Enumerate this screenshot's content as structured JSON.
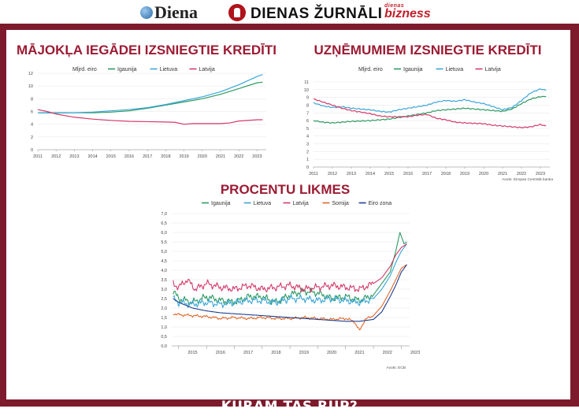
{
  "header": {
    "logos": [
      {
        "text": "Diena",
        "icon": "globe-icon"
      },
      {
        "text": "DIENAS ŽURNĀLI",
        "icon": "zurnali-icon"
      },
      {
        "text_small": "dienas",
        "text_big": "bizness"
      }
    ]
  },
  "footer_title": "KURAM TAS RŪP?",
  "colors": {
    "frame": "#7d1b2d",
    "title": "#9c1b33",
    "igaunija": "#2e9a63",
    "lietuva": "#3aa6d8",
    "latvija": "#d43a6a",
    "somija": "#e0682a",
    "eiro_zona": "#1f3f8f"
  },
  "chart_data": [
    {
      "type": "line",
      "title": "MĀJOKĻA IEGĀDEI IZSNIEGTIE KREDĪTI",
      "unit_label": "Mljrd. eiro",
      "x": [
        2011,
        2012,
        2013,
        2014,
        2015,
        2016,
        2017,
        2018,
        2019,
        2020,
        2021,
        2022,
        2023
      ],
      "x_ticks": [
        "2011",
        "2012",
        "2013",
        "2014",
        "2015",
        "2016",
        "2017",
        "2018",
        "2019",
        "2020",
        "2021",
        "2022",
        "2023"
      ],
      "y_ticks": [
        "0",
        "2",
        "4",
        "6",
        "8",
        "10",
        "12"
      ],
      "ylim": [
        0,
        12
      ],
      "xlim": [
        2011,
        2023.5
      ],
      "series": [
        {
          "name": "Igaunija",
          "color": "#2e9a63",
          "points": [
            [
              2011,
              5.8
            ],
            [
              2012,
              5.8
            ],
            [
              2013,
              5.8
            ],
            [
              2014,
              5.8
            ],
            [
              2015,
              5.9
            ],
            [
              2016,
              6.1
            ],
            [
              2017,
              6.5
            ],
            [
              2018,
              7.0
            ],
            [
              2019,
              7.5
            ],
            [
              2020,
              8.0
            ],
            [
              2021,
              8.7
            ],
            [
              2022,
              9.6
            ],
            [
              2023,
              10.5
            ],
            [
              2023.3,
              10.6
            ]
          ]
        },
        {
          "name": "Lietuva",
          "color": "#3aa6d8",
          "points": [
            [
              2011,
              5.8
            ],
            [
              2012,
              5.75
            ],
            [
              2013,
              5.8
            ],
            [
              2014,
              5.9
            ],
            [
              2015,
              6.1
            ],
            [
              2016,
              6.3
            ],
            [
              2017,
              6.6
            ],
            [
              2018,
              7.1
            ],
            [
              2019,
              7.7
            ],
            [
              2020,
              8.3
            ],
            [
              2021,
              9.1
            ],
            [
              2022,
              10.2
            ],
            [
              2023,
              11.5
            ],
            [
              2023.3,
              11.8
            ]
          ]
        },
        {
          "name": "Latvija",
          "color": "#d43a6a",
          "points": [
            [
              2011,
              6.3
            ],
            [
              2011.5,
              6.0
            ],
            [
              2012,
              5.6
            ],
            [
              2013,
              5.1
            ],
            [
              2014,
              4.8
            ],
            [
              2015,
              4.6
            ],
            [
              2016,
              4.45
            ],
            [
              2017,
              4.4
            ],
            [
              2018,
              4.35
            ],
            [
              2018.5,
              4.3
            ],
            [
              2019,
              4.0
            ],
            [
              2019.5,
              4.1
            ],
            [
              2020,
              4.1
            ],
            [
              2021,
              4.1
            ],
            [
              2021.5,
              4.2
            ],
            [
              2022,
              4.5
            ],
            [
              2023,
              4.7
            ],
            [
              2023.3,
              4.7
            ]
          ]
        }
      ]
    },
    {
      "type": "line",
      "title": "UZŅĒMUMIEM IZSNIEGTIE KREDĪTI",
      "unit_label": "Mljrd. eiro",
      "source": "Avots: Eiropas Centrālā banka",
      "x": [
        2011,
        2012,
        2013,
        2014,
        2015,
        2016,
        2017,
        2018,
        2019,
        2020,
        2021,
        2022,
        2023
      ],
      "x_ticks": [
        "2011",
        "2012",
        "2013",
        "2014",
        "2015",
        "2016",
        "2017",
        "2018",
        "2019",
        "2020",
        "2021",
        "2022",
        "2023"
      ],
      "y_ticks": [
        "0",
        "1",
        "2",
        "3",
        "4",
        "5",
        "6",
        "7",
        "8",
        "9",
        "10",
        "11"
      ],
      "ylim": [
        0,
        11
      ],
      "xlim": [
        2011,
        2023.5
      ],
      "series": [
        {
          "name": "Igaunija",
          "color": "#2e9a63",
          "points": [
            [
              2011,
              6.0
            ],
            [
              2011.5,
              5.8
            ],
            [
              2012,
              5.7
            ],
            [
              2013,
              5.9
            ],
            [
              2014,
              6.0
            ],
            [
              2015,
              6.2
            ],
            [
              2016,
              6.6
            ],
            [
              2017,
              7.0
            ],
            [
              2017.5,
              7.3
            ],
            [
              2018,
              7.4
            ],
            [
              2019,
              7.6
            ],
            [
              2020,
              7.4
            ],
            [
              2020.5,
              7.3
            ],
            [
              2021,
              7.2
            ],
            [
              2021.5,
              7.5
            ],
            [
              2022,
              8.2
            ],
            [
              2022.5,
              8.8
            ],
            [
              2023,
              9.1
            ],
            [
              2023.3,
              9.1
            ]
          ]
        },
        {
          "name": "Lietuva",
          "color": "#3aa6d8",
          "points": [
            [
              2011,
              8.3
            ],
            [
              2011.5,
              7.9
            ],
            [
              2012,
              7.7
            ],
            [
              2012.5,
              7.8
            ],
            [
              2013,
              7.6
            ],
            [
              2014,
              7.4
            ],
            [
              2014.5,
              7.2
            ],
            [
              2015,
              7.1
            ],
            [
              2015.5,
              7.4
            ],
            [
              2016,
              7.6
            ],
            [
              2017,
              8.0
            ],
            [
              2017.5,
              8.4
            ],
            [
              2018,
              8.6
            ],
            [
              2018.5,
              8.5
            ],
            [
              2019,
              8.7
            ],
            [
              2019.5,
              8.4
            ],
            [
              2020,
              8.2
            ],
            [
              2020.5,
              7.8
            ],
            [
              2021,
              7.4
            ],
            [
              2021.5,
              7.7
            ],
            [
              2022,
              8.6
            ],
            [
              2022.5,
              9.6
            ],
            [
              2023,
              10.1
            ],
            [
              2023.3,
              9.9
            ]
          ]
        },
        {
          "name": "Latvija",
          "color": "#d43a6a",
          "points": [
            [
              2011,
              8.8
            ],
            [
              2011.5,
              8.4
            ],
            [
              2012,
              8.0
            ],
            [
              2012.5,
              7.6
            ],
            [
              2013,
              7.3
            ],
            [
              2014,
              6.9
            ],
            [
              2014.5,
              6.6
            ],
            [
              2015,
              6.5
            ],
            [
              2016,
              6.5
            ],
            [
              2016.5,
              6.7
            ],
            [
              2017,
              6.8
            ],
            [
              2017.5,
              6.3
            ],
            [
              2018,
              6.1
            ],
            [
              2018.5,
              5.8
            ],
            [
              2019,
              5.7
            ],
            [
              2020,
              5.6
            ],
            [
              2020.5,
              5.4
            ],
            [
              2021,
              5.3
            ],
            [
              2021.5,
              5.2
            ],
            [
              2022,
              5.1
            ],
            [
              2022.5,
              5.2
            ],
            [
              2023,
              5.5
            ],
            [
              2023.3,
              5.3
            ]
          ]
        }
      ]
    },
    {
      "type": "line",
      "title": "PROCENTU LIKMES",
      "source": "Avots: ECB",
      "x_ticks": [
        "2015",
        "2016",
        "2017",
        "2018",
        "2019",
        "2020",
        "2021",
        "2022",
        "2023"
      ],
      "y_ticks": [
        "0,0",
        "0,5",
        "1,0",
        "1,5",
        "2,0",
        "2,5",
        "3,0",
        "3,5",
        "4,0",
        "4,5",
        "5,0",
        "5,5",
        "6,0",
        "6,5",
        "7,0"
      ],
      "ylim": [
        0,
        7
      ],
      "xlim": [
        2014.75,
        2023.3
      ],
      "series": [
        {
          "name": "Igaunija",
          "color": "#2e9a63",
          "points": [
            [
              2014.8,
              2.9
            ],
            [
              2015,
              2.5
            ],
            [
              2015.5,
              2.3
            ],
            [
              2016,
              2.6
            ],
            [
              2016.5,
              2.4
            ],
            [
              2017,
              2.3
            ],
            [
              2017.5,
              2.6
            ],
            [
              2018,
              2.6
            ],
            [
              2018.5,
              2.3
            ],
            [
              2019,
              2.7
            ],
            [
              2019.5,
              2.9
            ],
            [
              2020,
              2.8
            ],
            [
              2020.5,
              2.5
            ],
            [
              2021,
              2.6
            ],
            [
              2021.5,
              2.4
            ],
            [
              2022,
              2.7
            ],
            [
              2022.3,
              3.3
            ],
            [
              2022.6,
              3.9
            ],
            [
              2022.8,
              5.0
            ],
            [
              2022.95,
              6.0
            ],
            [
              2023.1,
              5.4
            ],
            [
              2023.2,
              5.5
            ]
          ]
        },
        {
          "name": "Lietuva",
          "color": "#3aa6d8",
          "points": [
            [
              2014.8,
              2.5
            ],
            [
              2015,
              2.3
            ],
            [
              2015.5,
              2.2
            ],
            [
              2016,
              2.3
            ],
            [
              2016.5,
              2.2
            ],
            [
              2017,
              2.3
            ],
            [
              2017.5,
              2.4
            ],
            [
              2018,
              2.4
            ],
            [
              2018.5,
              2.3
            ],
            [
              2019,
              2.5
            ],
            [
              2019.5,
              2.5
            ],
            [
              2020,
              2.4
            ],
            [
              2020.5,
              2.5
            ],
            [
              2021,
              2.4
            ],
            [
              2021.5,
              2.3
            ],
            [
              2022,
              2.5
            ],
            [
              2022.3,
              3.0
            ],
            [
              2022.6,
              3.7
            ],
            [
              2022.8,
              4.4
            ],
            [
              2023,
              5.0
            ],
            [
              2023.2,
              5.4
            ]
          ]
        },
        {
          "name": "Latvija",
          "color": "#d43a6a",
          "points": [
            [
              2014.8,
              3.3
            ],
            [
              2015,
              3.1
            ],
            [
              2015.3,
              3.5
            ],
            [
              2015.6,
              3.0
            ],
            [
              2016,
              3.3
            ],
            [
              2016.5,
              3.1
            ],
            [
              2017,
              3.0
            ],
            [
              2017.5,
              3.2
            ],
            [
              2018,
              3.0
            ],
            [
              2018.5,
              3.1
            ],
            [
              2019,
              3.2
            ],
            [
              2019.5,
              3.0
            ],
            [
              2020,
              3.1
            ],
            [
              2020.5,
              3.2
            ],
            [
              2021,
              3.1
            ],
            [
              2021.5,
              3.0
            ],
            [
              2022,
              3.3
            ],
            [
              2022.3,
              3.6
            ],
            [
              2022.6,
              4.2
            ],
            [
              2022.8,
              4.8
            ],
            [
              2023,
              5.2
            ],
            [
              2023.2,
              5.4
            ]
          ]
        },
        {
          "name": "Somija",
          "color": "#e0682a",
          "points": [
            [
              2014.8,
              1.7
            ],
            [
              2015,
              1.65
            ],
            [
              2015.5,
              1.6
            ],
            [
              2016,
              1.55
            ],
            [
              2016.5,
              1.45
            ],
            [
              2017,
              1.5
            ],
            [
              2017.5,
              1.45
            ],
            [
              2018,
              1.5
            ],
            [
              2018.5,
              1.45
            ],
            [
              2019,
              1.45
            ],
            [
              2019.5,
              1.5
            ],
            [
              2020,
              1.45
            ],
            [
              2020.5,
              1.4
            ],
            [
              2021,
              1.45
            ],
            [
              2021.3,
              1.3
            ],
            [
              2021.5,
              0.8
            ],
            [
              2021.7,
              1.4
            ],
            [
              2022,
              1.6
            ],
            [
              2022.3,
              2.1
            ],
            [
              2022.6,
              2.9
            ],
            [
              2022.8,
              3.5
            ],
            [
              2023,
              4.1
            ],
            [
              2023.2,
              4.3
            ]
          ]
        },
        {
          "name": "Eiro zona",
          "color": "#1f3f8f",
          "points": [
            [
              2014.8,
              2.5
            ],
            [
              2015,
              2.3
            ],
            [
              2015.5,
              2.0
            ],
            [
              2016,
              1.85
            ],
            [
              2016.5,
              1.75
            ],
            [
              2017,
              1.7
            ],
            [
              2017.5,
              1.65
            ],
            [
              2018,
              1.6
            ],
            [
              2018.5,
              1.55
            ],
            [
              2019,
              1.5
            ],
            [
              2019.5,
              1.45
            ],
            [
              2020,
              1.4
            ],
            [
              2020.5,
              1.35
            ],
            [
              2021,
              1.3
            ],
            [
              2021.5,
              1.3
            ],
            [
              2022,
              1.4
            ],
            [
              2022.3,
              1.8
            ],
            [
              2022.6,
              2.6
            ],
            [
              2022.8,
              3.2
            ],
            [
              2023,
              3.9
            ],
            [
              2023.2,
              4.3
            ]
          ]
        }
      ]
    }
  ]
}
